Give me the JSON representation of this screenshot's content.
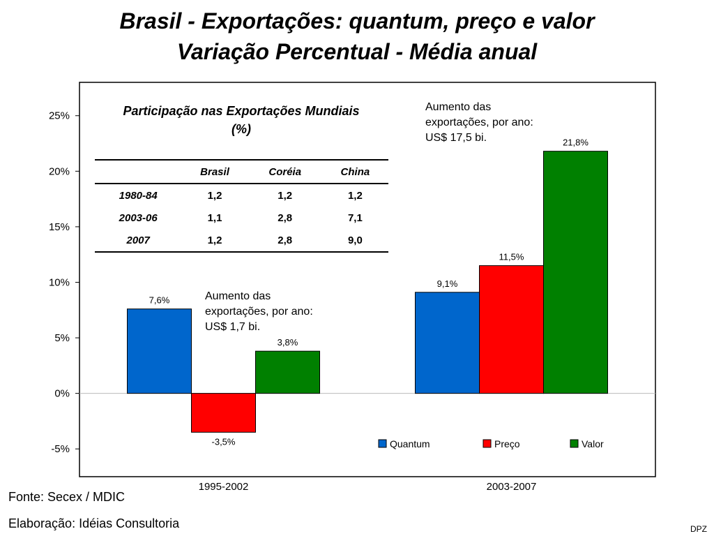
{
  "header": {
    "title_line1": "Brasil - Exportações: quantum, preço e valor",
    "title_line2": "Variação Percentual - Média anual"
  },
  "chart_data": {
    "type": "bar",
    "categories": [
      "1995-2002",
      "2003-2007"
    ],
    "series": [
      {
        "name": "Quantum",
        "color": "#0066cc",
        "values": [
          7.6,
          9.1
        ],
        "labels": [
          "7,6%",
          "9,1%"
        ]
      },
      {
        "name": "Preço",
        "color": "#ff0000",
        "values": [
          -3.5,
          11.5
        ],
        "labels": [
          "-3,5%",
          "11,5%"
        ]
      },
      {
        "name": "Valor",
        "color": "#008000",
        "values": [
          3.8,
          21.8
        ],
        "labels": [
          "3,8%",
          "21,8%"
        ]
      }
    ],
    "ylim": [
      -7.5,
      28
    ],
    "y_ticks": [
      25,
      20,
      15,
      10,
      5,
      0,
      -5
    ],
    "y_tick_labels": [
      "25%",
      "20%",
      "15%",
      "10%",
      "5%",
      "0%",
      "-5%"
    ],
    "legend": "bottom-right",
    "grid": false
  },
  "annotations": {
    "left": [
      "Aumento das",
      "exportações, por ano:",
      "US$ 1,7 bi."
    ],
    "right": [
      "Aumento das",
      "exportações, por ano:",
      "US$ 17,5 bi."
    ]
  },
  "inset_table": {
    "title_line1": "Participação nas Exportações Mundiais",
    "title_line2": "(%)",
    "columns": [
      "",
      "Brasil",
      "Coréia",
      "China"
    ],
    "rows": [
      {
        "label": "1980-84",
        "values": [
          "1,2",
          "1,2",
          "1,2"
        ]
      },
      {
        "label": "2003-06",
        "values": [
          "1,1",
          "2,8",
          "7,1"
        ]
      },
      {
        "label": "2007",
        "values": [
          "1,2",
          "2,8",
          "9,0"
        ]
      }
    ]
  },
  "footer": {
    "source": "Fonte: Secex / MDIC",
    "author": "Elaboração: Idéias  Consultoria",
    "tag": "DPZ"
  }
}
